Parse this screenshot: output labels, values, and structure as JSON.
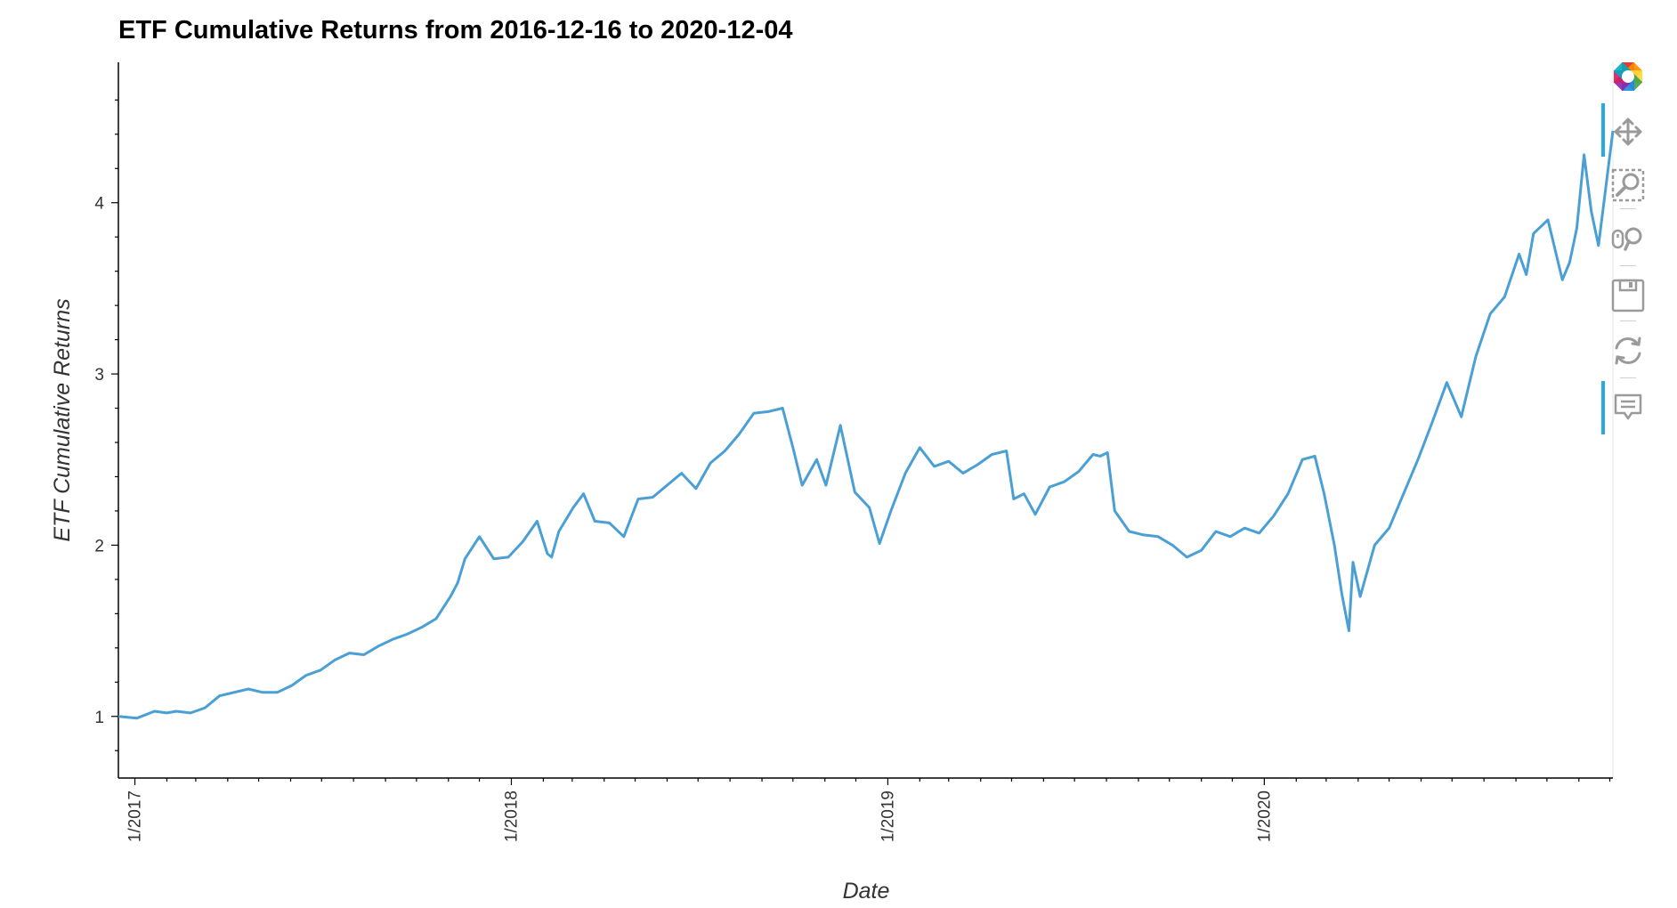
{
  "chart_data": {
    "type": "line",
    "title": "ETF Cumulative Returns from 2016-12-16 to 2020-12-04",
    "xlabel": "Date",
    "ylabel": "ETF Cumulative Returns",
    "x_range": [
      "2016-12-16",
      "2020-12-04"
    ],
    "ylim": [
      0.64,
      4.82
    ],
    "x_tick_labels": [
      "1/2017",
      "1/2018",
      "1/2019",
      "1/2020"
    ],
    "x_tick_dates": [
      "2017-01-01",
      "2018-01-01",
      "2019-01-01",
      "2020-01-01"
    ],
    "y_ticks": [
      1,
      2,
      3,
      4
    ],
    "grid": false,
    "legend": "none",
    "line_color": "#4a9fd5",
    "series": [
      {
        "x": [
          "2016-12-16",
          "2017-01-03",
          "2017-01-20",
          "2017-02-01",
          "2017-02-10",
          "2017-02-24",
          "2017-03-10",
          "2017-03-24",
          "2017-04-07",
          "2017-04-21",
          "2017-05-05",
          "2017-05-19",
          "2017-06-02",
          "2017-06-16",
          "2017-06-30",
          "2017-07-14",
          "2017-07-28",
          "2017-08-11",
          "2017-08-25",
          "2017-09-08",
          "2017-09-22",
          "2017-10-06",
          "2017-10-20",
          "2017-11-03",
          "2017-11-10",
          "2017-11-17",
          "2017-12-01",
          "2017-12-15",
          "2017-12-29",
          "2018-01-12",
          "2018-01-26",
          "2018-02-05",
          "2018-02-09",
          "2018-02-16",
          "2018-03-02",
          "2018-03-12",
          "2018-03-23",
          "2018-04-06",
          "2018-04-20",
          "2018-05-04",
          "2018-05-18",
          "2018-06-01",
          "2018-06-15",
          "2018-06-29",
          "2018-07-13",
          "2018-07-27",
          "2018-08-10",
          "2018-08-24",
          "2018-09-07",
          "2018-09-21",
          "2018-10-01",
          "2018-10-10",
          "2018-10-24",
          "2018-11-02",
          "2018-11-16",
          "2018-11-30",
          "2018-12-14",
          "2018-12-24",
          "2019-01-04",
          "2019-01-18",
          "2019-02-01",
          "2019-02-15",
          "2019-03-01",
          "2019-03-15",
          "2019-03-29",
          "2019-04-12",
          "2019-04-26",
          "2019-05-03",
          "2019-05-13",
          "2019-05-24",
          "2019-06-07",
          "2019-06-21",
          "2019-07-05",
          "2019-07-19",
          "2019-07-26",
          "2019-08-02",
          "2019-08-09",
          "2019-08-23",
          "2019-09-06",
          "2019-09-20",
          "2019-10-04",
          "2019-10-18",
          "2019-11-01",
          "2019-11-15",
          "2019-11-29",
          "2019-12-13",
          "2019-12-27",
          "2020-01-10",
          "2020-01-24",
          "2020-02-07",
          "2020-02-19",
          "2020-02-28",
          "2020-03-09",
          "2020-03-16",
          "2020-03-23",
          "2020-03-27",
          "2020-04-03",
          "2020-04-17",
          "2020-05-01",
          "2020-05-15",
          "2020-05-29",
          "2020-06-12",
          "2020-06-26",
          "2020-07-10",
          "2020-07-24",
          "2020-08-07",
          "2020-08-21",
          "2020-09-04",
          "2020-09-11",
          "2020-09-18",
          "2020-10-02",
          "2020-10-16",
          "2020-10-23",
          "2020-10-30",
          "2020-11-06",
          "2020-11-13",
          "2020-11-20",
          "2020-12-04"
        ],
        "values": [
          1.0,
          0.99,
          1.03,
          1.02,
          1.03,
          1.02,
          1.05,
          1.12,
          1.14,
          1.16,
          1.14,
          1.14,
          1.18,
          1.24,
          1.27,
          1.33,
          1.37,
          1.36,
          1.41,
          1.45,
          1.48,
          1.52,
          1.57,
          1.7,
          1.78,
          1.92,
          2.05,
          1.92,
          1.93,
          2.02,
          2.14,
          1.95,
          1.93,
          2.08,
          2.22,
          2.3,
          2.14,
          2.13,
          2.05,
          2.27,
          2.28,
          2.35,
          2.42,
          2.33,
          2.48,
          2.55,
          2.65,
          2.77,
          2.78,
          2.8,
          2.57,
          2.35,
          2.5,
          2.35,
          2.7,
          2.31,
          2.22,
          2.01,
          2.2,
          2.42,
          2.57,
          2.46,
          2.49,
          2.42,
          2.47,
          2.53,
          2.55,
          2.27,
          2.3,
          2.18,
          2.34,
          2.37,
          2.43,
          2.53,
          2.52,
          2.54,
          2.2,
          2.08,
          2.06,
          2.05,
          2.0,
          1.93,
          1.97,
          2.08,
          2.05,
          2.1,
          2.07,
          2.17,
          2.3,
          2.5,
          2.52,
          2.3,
          2.0,
          1.72,
          1.5,
          1.9,
          1.7,
          2.0,
          2.1,
          2.3,
          2.5,
          2.72,
          2.95,
          2.75,
          3.1,
          3.35,
          3.45,
          3.7,
          3.58,
          3.82,
          3.9,
          3.55,
          3.65,
          3.85,
          4.28,
          3.95,
          3.75,
          4.42
        ]
      }
    ]
  },
  "toolbar": {
    "tools": [
      "bokeh-logo-icon",
      "pan-icon",
      "box-zoom-icon",
      "wheel-zoom-icon",
      "save-icon",
      "reset-icon",
      "hover-icon"
    ]
  }
}
